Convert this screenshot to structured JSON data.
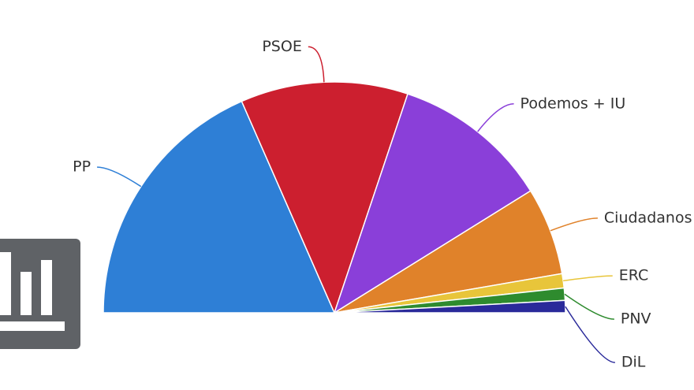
{
  "chart_data": {
    "type": "semipie",
    "categories": [
      "PP",
      "PSOE",
      "Podemos + IU",
      "Ciudadanos",
      "ERC",
      "PNV",
      "DiL"
    ],
    "values": [
      129,
      82,
      77,
      43,
      7,
      6,
      6
    ],
    "colors": [
      "#2e7fd6",
      "#cc1f2f",
      "#8a3fd9",
      "#e0822a",
      "#e8c53a",
      "#2e8b2e",
      "#2a2a9a"
    ]
  }
}
